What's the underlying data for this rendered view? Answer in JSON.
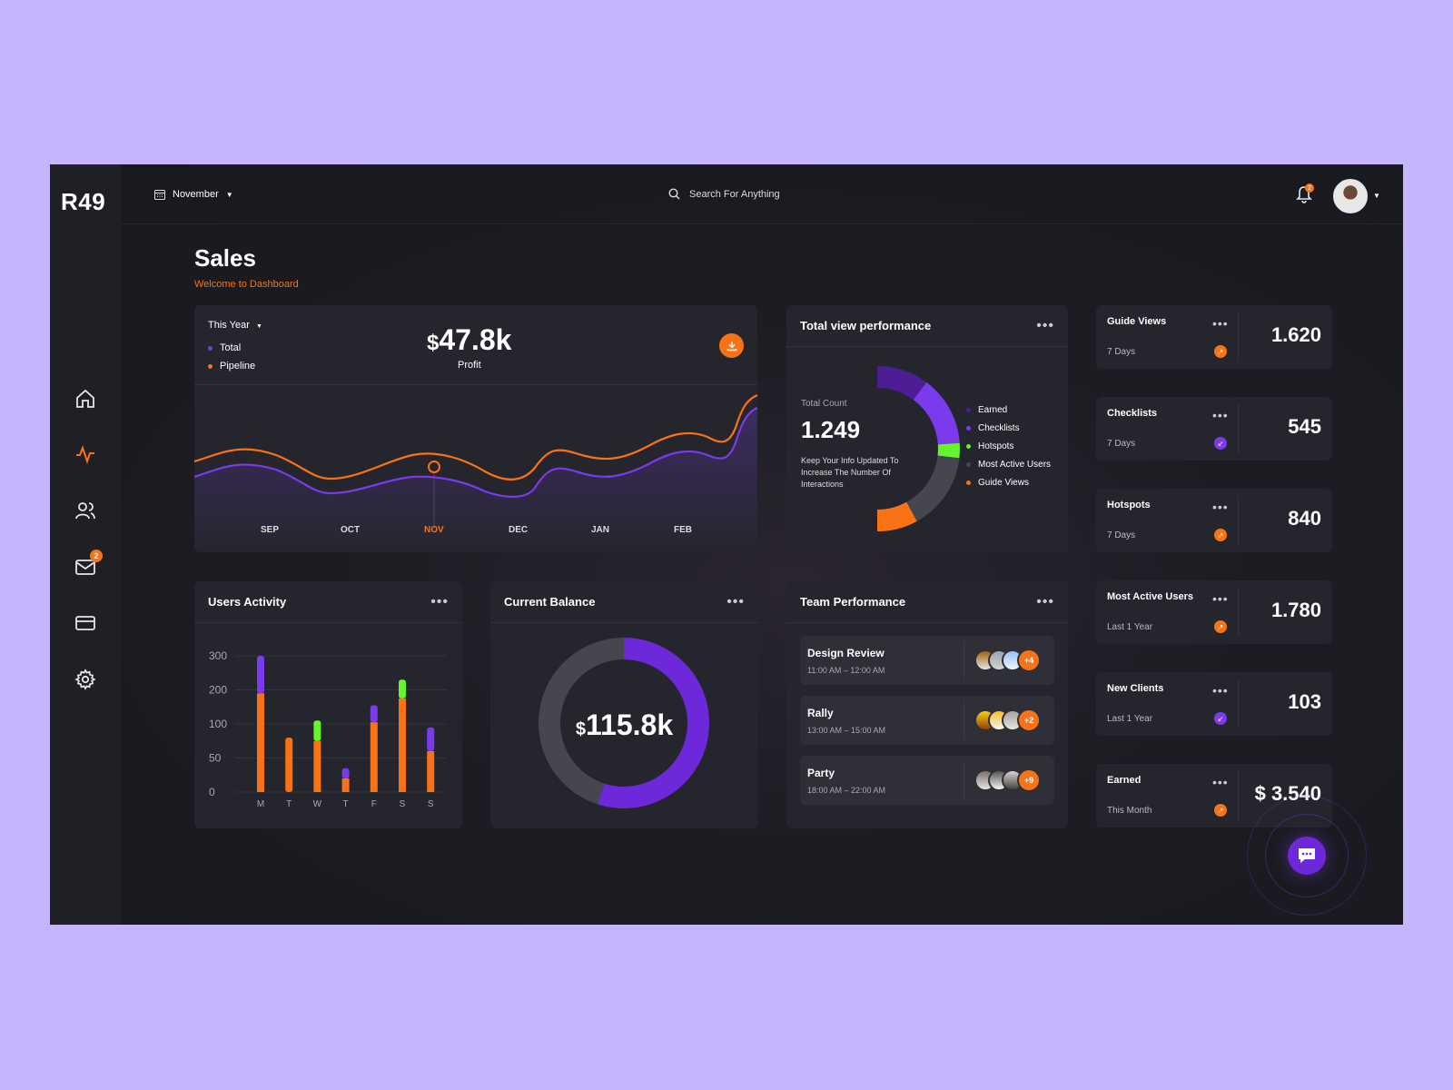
{
  "app": {
    "logo": "R49",
    "month_select": "November",
    "search_placeholder": "Search For Anything",
    "notification_count": "2",
    "mail_badge": "2"
  },
  "page": {
    "title": "Sales",
    "subtitle": "Welcome to Dashboard"
  },
  "sales_card": {
    "period": "This Year",
    "legend": [
      {
        "label": "Total",
        "color": "#7c3aed"
      },
      {
        "label": "Pipeline",
        "color": "#f97316"
      }
    ],
    "profit_currency": "$",
    "profit_value": "47.8k",
    "profit_label": "Profit",
    "months": [
      "SEP",
      "OCT",
      "NOV",
      "DEC",
      "JAN",
      "FEB"
    ],
    "highlight_month": "NOV"
  },
  "view_perf": {
    "title": "Total view performance",
    "count_label": "Total Count",
    "count_value": "1.249",
    "note": "Keep Your Info Updated To Increase The Number Of Interactions",
    "legend": [
      {
        "label": "Earned",
        "color": "#4c1d95"
      },
      {
        "label": "Checklists",
        "color": "#7c3aed"
      },
      {
        "label": "Hotspots",
        "color": "#65f52b"
      },
      {
        "label": "Most Active Users",
        "color": "#45464f"
      },
      {
        "label": "Guide Views",
        "color": "#f97316"
      }
    ]
  },
  "stats": [
    {
      "title": "Guide Views",
      "period": "7 Days",
      "value": "1.620",
      "trend": "up",
      "color": "#f97316"
    },
    {
      "title": "Checklists",
      "period": "7 Days",
      "value": "545",
      "trend": "down",
      "color": "#7c3aed"
    },
    {
      "title": "Hotspots",
      "period": "7 Days",
      "value": "840",
      "trend": "up",
      "color": "#f97316"
    },
    {
      "title": "Most Active Users",
      "period": "Last 1 Year",
      "value": "1.780",
      "trend": "up",
      "color": "#f97316"
    },
    {
      "title": "New Clients",
      "period": "Last 1 Year",
      "value": "103",
      "trend": "down",
      "color": "#7c3aed"
    },
    {
      "title": "Earned",
      "period": "This Month",
      "value": "$ 3.540",
      "trend": "up",
      "color": "#f97316"
    }
  ],
  "users_activity": {
    "title": "Users Activity"
  },
  "balance": {
    "title": "Current Balance",
    "currency": "$",
    "value": "115.8k"
  },
  "team": {
    "title": "Team Performance",
    "events": [
      {
        "name": "Design Review",
        "time": "11:00 AM – 12:00 AM",
        "more": "+4"
      },
      {
        "name": "Rally",
        "time": "13:00 AM – 15:00 AM",
        "more": "+2"
      },
      {
        "name": "Party",
        "time": "18:00 AM – 22:00 AM",
        "more": "+9"
      }
    ]
  },
  "chart_data": [
    {
      "type": "line",
      "x": [
        "SEP",
        "OCT",
        "NOV",
        "DEC",
        "JAN",
        "FEB"
      ],
      "series": [
        {
          "name": "Total",
          "color": "#7c3aed"
        },
        {
          "name": "Pipeline",
          "color": "#f97316"
        }
      ]
    },
    {
      "type": "bar",
      "title": "Users Activity",
      "categories": [
        "M",
        "T",
        "W",
        "T",
        "F",
        "S",
        "S"
      ],
      "yticks": [
        "300",
        "200",
        "100",
        "50",
        "0"
      ],
      "tick_values": [
        300,
        200,
        100,
        50,
        0
      ],
      "series": [
        {
          "name": "orange",
          "color": "#f97316",
          "values": [
            190,
            80,
            75,
            20,
            105,
            175,
            60
          ]
        },
        {
          "name": "purple",
          "color": "#7c3aed",
          "values": [
            115,
            0,
            0,
            15,
            50,
            0,
            35
          ]
        },
        {
          "name": "green",
          "color": "#65f52b",
          "values": [
            0,
            0,
            35,
            0,
            0,
            55,
            0
          ]
        }
      ],
      "top_colors": [
        "#7c3aed",
        "#7c3aed",
        "#65f52b",
        "#7c3aed",
        "#7c3aed",
        "#65f52b",
        "#7c3aed"
      ]
    },
    {
      "type": "pie",
      "title": "Total view performance",
      "categories": [
        "Earned",
        "Checklists",
        "Hotspots",
        "Most Active Users",
        "Guide Views"
      ],
      "values": [
        14,
        19,
        4,
        21,
        11
      ],
      "colors": [
        "#4c1d95",
        "#7c3aed",
        "#65f52b",
        "#45464f",
        "#f97316"
      ]
    },
    {
      "type": "pie",
      "title": "Current Balance",
      "categories": [
        "purple",
        "gray"
      ],
      "values": [
        55,
        45
      ],
      "colors": [
        "#6d28d9",
        "#45464f"
      ]
    }
  ]
}
